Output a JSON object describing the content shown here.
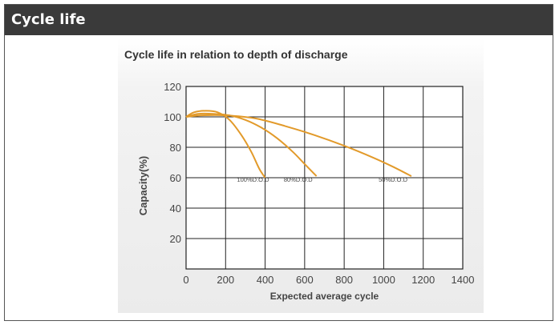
{
  "header": {
    "title": "Cycle life"
  },
  "colors": {
    "header_bg": "#3a3a3a",
    "line": "#e29a2a",
    "grid": "#222222",
    "plot_bg": "#f2f2f2"
  },
  "chart_data": {
    "type": "line",
    "title": "Cycle life in relation to depth of discharge",
    "xlabel": "Expected average cycle",
    "ylabel": "Capacity(%)",
    "xlim": [
      0,
      1400
    ],
    "ylim": [
      0,
      120
    ],
    "xticks": [
      "0",
      "200",
      "400",
      "600",
      "800",
      "1000",
      "1200",
      "1400"
    ],
    "yticks": [
      "20",
      "40",
      "60",
      "80",
      "100",
      "120"
    ],
    "grid": true,
    "series": [
      {
        "name": "100%D.O.D",
        "label_at": [
          420,
          60
        ],
        "x": [
          0,
          40,
          100,
          160,
          220,
          280,
          330,
          370,
          400
        ],
        "y": [
          100,
          103,
          104,
          103,
          98,
          88,
          77,
          66,
          60
        ]
      },
      {
        "name": "80%D.O.D",
        "label_at": [
          640,
          60
        ],
        "x": [
          0,
          60,
          140,
          220,
          300,
          380,
          460,
          540,
          600,
          660
        ],
        "y": [
          100,
          102,
          102,
          101,
          98,
          93,
          86,
          77,
          69,
          61
        ]
      },
      {
        "name": "50%D.O.D",
        "label_at": [
          1120,
          60
        ],
        "x": [
          0,
          80,
          200,
          350,
          500,
          650,
          800,
          950,
          1050,
          1140
        ],
        "y": [
          100,
          101,
          101,
          99,
          94,
          88,
          81,
          73,
          67,
          61
        ]
      }
    ]
  }
}
